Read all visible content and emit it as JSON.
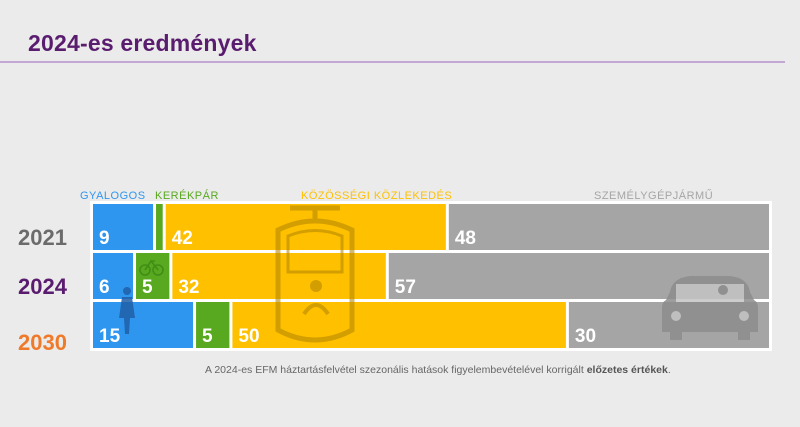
{
  "header": {
    "title": "2024-es eredmények"
  },
  "colors": {
    "gyalogos": "#2f96f0",
    "kerekpar": "#58a91f",
    "kozossegi": "#ffc000",
    "szemelygepjarmu": "#a5a5a5",
    "year_2021": "#6b6b6b",
    "year_2024": "#5a1c6e",
    "year_2030": "#ee7a2a",
    "title": "#5a1c6e"
  },
  "footnote": {
    "text": "A 2024-es EFM háztartásfelvétel szezonális hatások figyelembevételével korrigált ",
    "bold": "előzetes értékek",
    "end": "."
  },
  "icons": [
    "pedestrian-icon",
    "bicycle-icon",
    "tram-icon",
    "car-icon"
  ],
  "chart_data": {
    "type": "bar",
    "stacked": true,
    "orientation": "horizontal",
    "categories": [
      "2021",
      "2024",
      "2030"
    ],
    "series": [
      {
        "name": "GYALOGOS",
        "values": [
          9,
          6,
          15
        ]
      },
      {
        "name": "KERÉKPÁR",
        "values": [
          1,
          5,
          5
        ]
      },
      {
        "name": "KÖZÖSSÉGI KÖZLEKEDÉS",
        "values": [
          42,
          32,
          50
        ]
      },
      {
        "name": "SZEMÉLYGÉPJÁRMŰ",
        "values": [
          48,
          57,
          30
        ]
      }
    ],
    "xlim": [
      0,
      100
    ],
    "title": "",
    "legend": "top"
  }
}
